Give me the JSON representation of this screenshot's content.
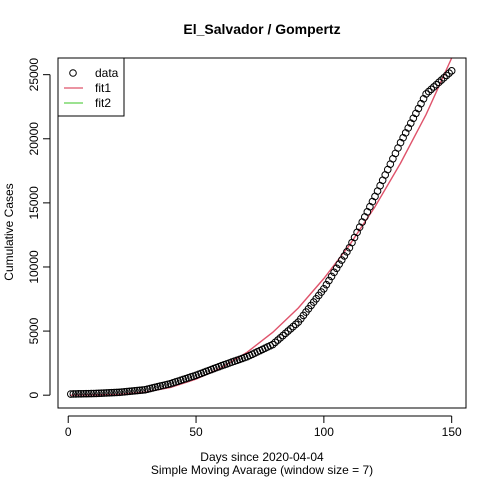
{
  "chart_data": {
    "type": "scatter",
    "title": "El_Salvador / Gompertz",
    "xlabel": "Days since 2020-04-04",
    "xlabel2": "Simple Moving Avarage (window size = 7)",
    "ylabel": "Cumulative Cases",
    "xlim": [
      -4.0,
      155.6
    ],
    "ylim": [
      -1000,
      26300
    ],
    "x_ticks": [
      0,
      50,
      100,
      150
    ],
    "y_ticks": [
      0,
      5000,
      10000,
      15000,
      20000,
      25000
    ],
    "legend": {
      "position": "top-left",
      "entries": [
        {
          "label": "data",
          "kind": "point",
          "color": "#000000"
        },
        {
          "label": "fit1",
          "kind": "line",
          "color": "#DF536B"
        },
        {
          "label": "fit2",
          "kind": "line",
          "color": "#61D04F"
        }
      ]
    },
    "series": [
      {
        "name": "data",
        "kind": "points",
        "color": "#000000",
        "x_start": 1,
        "x_end": 150,
        "y_keypoints": [
          [
            1,
            90
          ],
          [
            10,
            130
          ],
          [
            20,
            220
          ],
          [
            30,
            420
          ],
          [
            40,
            900
          ],
          [
            50,
            1550
          ],
          [
            60,
            2300
          ],
          [
            70,
            3000
          ],
          [
            80,
            3950
          ],
          [
            90,
            5700
          ],
          [
            100,
            8300
          ],
          [
            110,
            11500
          ],
          [
            120,
            15500
          ],
          [
            130,
            19700
          ],
          [
            140,
            23500
          ],
          [
            150,
            25300
          ]
        ]
      },
      {
        "name": "fit1",
        "kind": "line",
        "color": "#DF536B",
        "points": [
          [
            1,
            0
          ],
          [
            20,
            60
          ],
          [
            30,
            230
          ],
          [
            40,
            600
          ],
          [
            50,
            1250
          ],
          [
            60,
            2150
          ],
          [
            70,
            3350
          ],
          [
            80,
            4900
          ],
          [
            90,
            6800
          ],
          [
            100,
            9100
          ],
          [
            110,
            11700
          ],
          [
            120,
            14700
          ],
          [
            130,
            18100
          ],
          [
            140,
            21900
          ],
          [
            150,
            26300
          ]
        ]
      }
    ]
  }
}
